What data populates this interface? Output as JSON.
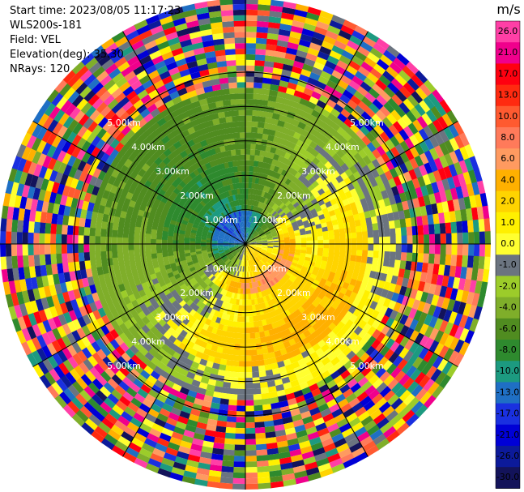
{
  "info": {
    "start_time": "Start time: 2023/08/05 11:17:23",
    "site": "WLS200s-181",
    "field": "Field: VEL",
    "elevation": "Elevation(deg): 35.30",
    "nrays": "NRays: 120"
  },
  "chart_data": {
    "type": "polar-ppi",
    "field": "VEL",
    "units": "m/s",
    "nrays": 120,
    "range_rings_km": [
      1,
      2,
      3,
      4,
      5
    ],
    "ring_labels": [
      "1.00km",
      "2.00km",
      "3.00km",
      "4.00km",
      "5.00km"
    ],
    "max_range_km": 7.0,
    "azimuth_lines_deg": [
      0,
      30,
      60,
      90,
      120,
      150,
      180,
      210,
      240,
      270,
      300,
      330
    ],
    "colorbar": {
      "unit_label": "m/s",
      "ticks": [
        "26.0",
        "21.0",
        "17.0",
        "13.0",
        "10.0",
        "8.0",
        "6.0",
        "4.0",
        "2.0",
        "1.0",
        "0.0",
        "-1.0",
        "-2.0",
        "-4.0",
        "-6.0",
        "-8.0",
        "-10.0",
        "-13.0",
        "-17.0",
        "-21.0",
        "-26.0",
        "-30.0"
      ],
      "colors": [
        "#ff3fa6",
        "#f0008c",
        "#ff0010",
        "#ff2a10",
        "#ff5a30",
        "#ff7a5a",
        "#ff9a60",
        "#ffb000",
        "#ffd400",
        "#fff000",
        "#ffff30",
        "#6b7480",
        "#9ccc2a",
        "#7fae2a",
        "#508c20",
        "#2e8a2e",
        "#1c9a80",
        "#1f6fc4",
        "#1a30e0",
        "#0000d6",
        "#0c1a9a",
        "#13135a"
      ]
    },
    "velocity_bands": [
      {
        "range_km": [
          0.0,
          1.0
        ],
        "value_ms": -5
      },
      {
        "range_km": [
          1.0,
          1.4
        ],
        "value_ms": -0.5
      },
      {
        "range_km": [
          1.4,
          2.5
        ],
        "value_ms": -2
      },
      {
        "range_km": [
          2.5,
          3.6
        ],
        "value_ms": -0.5
      },
      {
        "range_km": [
          3.6,
          4.6
        ],
        "value_ms": -2
      },
      {
        "range_km": [
          4.6,
          7.0
        ],
        "value_ms": "noise"
      }
    ]
  }
}
